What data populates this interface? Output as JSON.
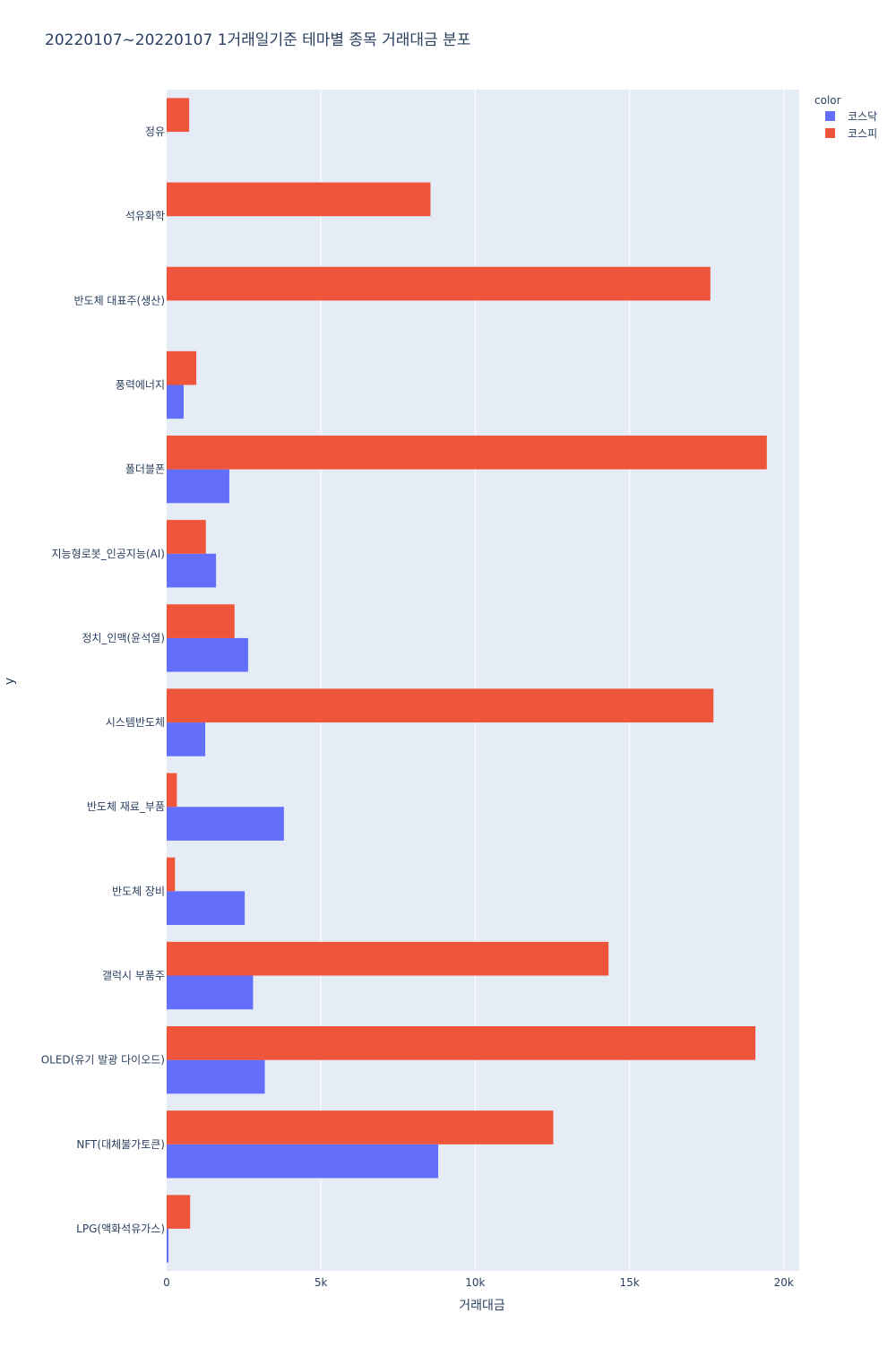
{
  "chart_data": {
    "type": "bar",
    "orientation": "horizontal",
    "barmode": "group",
    "title": "20220107~20220107 1거래일기준 테마별 종목 거래대금 분포",
    "xlabel": "거래대금",
    "ylabel": "y",
    "xlim": [
      0,
      20500
    ],
    "xticks": [
      0,
      5000,
      10000,
      15000,
      20000
    ],
    "xtick_labels": [
      "0",
      "5k",
      "10k",
      "15k",
      "20k"
    ],
    "grid": true,
    "legend": {
      "title": "color",
      "placement": "top-right",
      "entries": [
        "코스닥",
        "코스피"
      ]
    },
    "categories": [
      "정유",
      "석유화학",
      "반도체 대표주(생산)",
      "풍력에너지",
      "폴더블폰",
      "지능형로봇_인공지능(AI)",
      "정치_인맥(윤석열)",
      "시스템반도체",
      "반도체 재료_부품",
      "반도체 장비",
      "갤럭시 부품주",
      "OLED(유기 발광 다이오드)",
      "NFT(대체불가토큰)",
      "LPG(액화석유가스)"
    ],
    "series": [
      {
        "name": "코스닥",
        "color": "#636efa",
        "values": [
          0,
          0,
          0,
          550,
          2030,
          1600,
          2640,
          1250,
          3800,
          2530,
          2800,
          3180,
          8800,
          60
        ]
      },
      {
        "name": "코스피",
        "color": "#ef553b",
        "values": [
          730,
          8550,
          17620,
          960,
          19450,
          1270,
          2200,
          17720,
          330,
          270,
          14320,
          19080,
          12530,
          760
        ]
      }
    ]
  },
  "colors": {
    "plot_background": "#e5ecf6",
    "grid": "#ffffff",
    "text": "#2a3f5f"
  }
}
